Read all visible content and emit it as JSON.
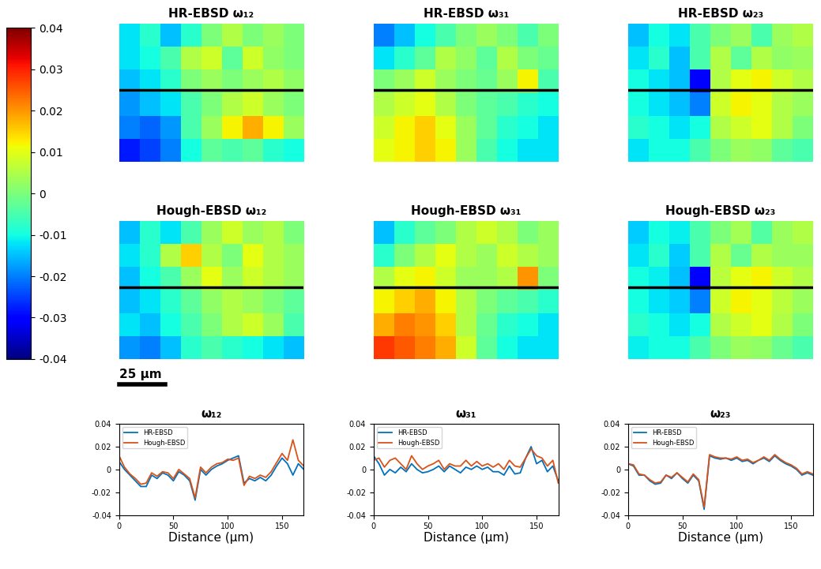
{
  "chart_data": [
    {
      "type": "colorbar",
      "range": [
        -0.04,
        0.04
      ],
      "ticks": [
        -0.04,
        -0.03,
        -0.02,
        -0.01,
        0,
        0.01,
        0.02,
        0.03,
        0.04
      ]
    },
    {
      "type": "heatmap",
      "title": "HR-EBSD ω₁₂",
      "tick_labels": false,
      "cells": [
        [
          -0.012,
          -0.008,
          -0.015,
          -0.008,
          0.0,
          0.005,
          0.0,
          0.003,
          0.0
        ],
        [
          -0.012,
          -0.01,
          -0.005,
          0.005,
          0.008,
          -0.003,
          0.008,
          0.002,
          0.0
        ],
        [
          -0.015,
          -0.012,
          -0.008,
          0.0,
          0.003,
          0.0,
          0.003,
          0.005,
          0.002
        ],
        [
          -0.018,
          -0.015,
          -0.012,
          -0.005,
          0.0,
          0.005,
          0.008,
          0.003,
          0.0
        ],
        [
          -0.02,
          -0.022,
          -0.018,
          -0.005,
          0.003,
          0.012,
          0.018,
          0.012,
          0.003
        ],
        [
          -0.028,
          -0.025,
          -0.02,
          -0.01,
          -0.003,
          -0.005,
          -0.003,
          -0.008,
          -0.01
        ]
      ]
    },
    {
      "type": "heatmap",
      "title": "HR-EBSD ω₃₁",
      "tick_labels": false,
      "cells": [
        [
          -0.02,
          -0.015,
          -0.01,
          -0.005,
          0.0,
          0.003,
          0.0,
          -0.005,
          0.0
        ],
        [
          -0.012,
          -0.008,
          -0.003,
          0.005,
          0.002,
          -0.003,
          0.005,
          0.0,
          -0.002
        ],
        [
          0.0,
          0.003,
          0.008,
          0.003,
          0.0,
          -0.002,
          0.003,
          0.012,
          -0.005
        ],
        [
          0.005,
          0.008,
          0.01,
          0.005,
          0.0,
          -0.003,
          -0.005,
          -0.008,
          -0.01
        ],
        [
          0.008,
          0.012,
          0.015,
          0.01,
          0.003,
          -0.003,
          -0.008,
          -0.01,
          -0.012
        ],
        [
          0.01,
          0.012,
          0.015,
          0.012,
          0.003,
          -0.005,
          -0.01,
          -0.012,
          -0.012
        ]
      ]
    },
    {
      "type": "heatmap",
      "title": "HR-EBSD ω₂₃",
      "tick_labels": false,
      "cells": [
        [
          -0.015,
          -0.01,
          -0.012,
          -0.005,
          0.0,
          0.003,
          -0.005,
          0.003,
          0.005
        ],
        [
          -0.012,
          -0.008,
          -0.015,
          -0.005,
          0.005,
          -0.003,
          0.005,
          0.002,
          0.003
        ],
        [
          -0.01,
          -0.012,
          -0.015,
          -0.03,
          0.005,
          0.01,
          0.012,
          0.008,
          0.005
        ],
        [
          -0.01,
          -0.012,
          -0.015,
          -0.02,
          0.008,
          0.012,
          0.01,
          0.005,
          0.003
        ],
        [
          -0.008,
          -0.01,
          -0.012,
          -0.01,
          0.005,
          0.008,
          0.01,
          0.005,
          0.0
        ],
        [
          -0.012,
          -0.01,
          -0.01,
          -0.005,
          0.0,
          0.003,
          0.002,
          -0.003,
          -0.005
        ]
      ]
    },
    {
      "type": "heatmap",
      "title": "Hough-EBSD ω₁₂",
      "tick_labels": false,
      "annotations": [
        "25 μm"
      ],
      "cells": [
        [
          -0.015,
          -0.008,
          -0.012,
          -0.005,
          0.003,
          0.008,
          0.003,
          0.005,
          0.0
        ],
        [
          -0.012,
          -0.008,
          0.005,
          0.015,
          0.005,
          0.0,
          0.01,
          0.005,
          0.003
        ],
        [
          -0.015,
          -0.01,
          -0.005,
          0.003,
          0.01,
          0.003,
          0.008,
          0.005,
          0.003
        ],
        [
          -0.015,
          -0.012,
          -0.008,
          -0.003,
          0.002,
          0.005,
          0.003,
          0.0,
          -0.003
        ],
        [
          -0.012,
          -0.015,
          -0.01,
          -0.005,
          0.0,
          0.005,
          0.008,
          0.003,
          -0.005
        ],
        [
          -0.018,
          -0.02,
          -0.015,
          -0.008,
          -0.005,
          -0.008,
          -0.01,
          -0.012,
          -0.015
        ]
      ]
    },
    {
      "type": "heatmap",
      "title": "Hough-EBSD ω₃₁",
      "tick_labels": false,
      "cells": [
        [
          -0.015,
          -0.008,
          -0.003,
          0.0,
          0.005,
          0.008,
          0.005,
          0.0,
          0.003
        ],
        [
          -0.008,
          0.0,
          0.005,
          0.01,
          0.005,
          0.003,
          0.008,
          0.005,
          0.003
        ],
        [
          0.005,
          0.01,
          0.012,
          0.008,
          0.003,
          0.003,
          0.005,
          0.02,
          0.0
        ],
        [
          0.012,
          0.015,
          0.018,
          0.012,
          0.005,
          0.0,
          -0.003,
          -0.005,
          -0.008
        ],
        [
          0.018,
          0.022,
          0.02,
          0.015,
          0.005,
          -0.002,
          -0.008,
          -0.01,
          -0.012
        ],
        [
          0.028,
          0.025,
          0.022,
          0.018,
          0.008,
          -0.003,
          -0.01,
          -0.012,
          -0.012
        ]
      ]
    },
    {
      "type": "heatmap",
      "title": "Hough-EBSD ω₂₃",
      "tick_labels": false,
      "cells": [
        [
          -0.014,
          -0.01,
          -0.011,
          -0.005,
          0.0,
          0.004,
          -0.004,
          0.003,
          0.005
        ],
        [
          -0.012,
          -0.008,
          -0.014,
          -0.005,
          0.005,
          -0.002,
          0.005,
          0.003,
          0.003
        ],
        [
          -0.01,
          -0.011,
          -0.015,
          -0.03,
          0.006,
          0.01,
          0.012,
          0.008,
          0.005
        ],
        [
          -0.01,
          -0.012,
          -0.014,
          -0.02,
          0.008,
          0.012,
          0.01,
          0.006,
          0.003
        ],
        [
          -0.008,
          -0.01,
          -0.012,
          -0.01,
          0.005,
          0.008,
          0.01,
          0.005,
          0.0
        ],
        [
          -0.011,
          -0.01,
          -0.01,
          -0.005,
          0.0,
          0.003,
          0.002,
          -0.002,
          -0.005
        ]
      ]
    },
    {
      "type": "line",
      "title": "ω₁₂",
      "xlabel": "Distance (μm)",
      "xlim": [
        0,
        170
      ],
      "xticks": [
        0,
        50,
        100,
        150
      ],
      "ylim": [
        -0.04,
        0.04
      ],
      "yticks": [
        -0.04,
        -0.02,
        0,
        0.02,
        0.04
      ],
      "legend": "upper left",
      "x": [
        0,
        5,
        10,
        15,
        20,
        25,
        30,
        35,
        40,
        45,
        50,
        55,
        60,
        65,
        70,
        75,
        80,
        85,
        90,
        95,
        100,
        105,
        110,
        115,
        120,
        125,
        130,
        135,
        140,
        145,
        150,
        155,
        160,
        165,
        170
      ],
      "series": [
        {
          "name": "HR-EBSD",
          "color": "#0072bd",
          "values": [
            0.007,
            0.0,
            -0.005,
            -0.01,
            -0.015,
            -0.015,
            -0.005,
            -0.008,
            -0.003,
            -0.005,
            -0.01,
            -0.002,
            -0.005,
            -0.01,
            -0.027,
            0.0,
            -0.005,
            0.0,
            0.003,
            0.005,
            0.008,
            0.01,
            0.012,
            -0.012,
            -0.008,
            -0.01,
            -0.007,
            -0.01,
            -0.005,
            0.003,
            0.01,
            0.005,
            -0.005,
            0.005,
            0.0
          ]
        },
        {
          "name": "Hough-EBSD",
          "color": "#d95319",
          "values": [
            0.012,
            0.002,
            -0.004,
            -0.008,
            -0.013,
            -0.012,
            -0.003,
            -0.006,
            -0.002,
            -0.003,
            -0.008,
            0.0,
            -0.004,
            -0.008,
            -0.025,
            0.002,
            -0.003,
            0.002,
            0.005,
            0.006,
            0.009,
            0.008,
            0.01,
            -0.014,
            -0.006,
            -0.008,
            -0.005,
            -0.007,
            -0.002,
            0.006,
            0.014,
            0.008,
            0.026,
            0.008,
            0.003
          ]
        }
      ]
    },
    {
      "type": "line",
      "title": "ω₃₁",
      "xlabel": "Distance (μm)",
      "xlim": [
        0,
        170
      ],
      "xticks": [
        0,
        50,
        100,
        150
      ],
      "ylim": [
        -0.04,
        0.04
      ],
      "yticks": [
        -0.04,
        -0.02,
        0,
        0.02,
        0.04
      ],
      "legend": "upper left",
      "x": [
        0,
        5,
        10,
        15,
        20,
        25,
        30,
        35,
        40,
        45,
        50,
        55,
        60,
        65,
        70,
        75,
        80,
        85,
        90,
        95,
        100,
        105,
        110,
        115,
        120,
        125,
        130,
        135,
        140,
        145,
        150,
        155,
        160,
        165,
        170
      ],
      "series": [
        {
          "name": "HR-EBSD",
          "color": "#0072bd",
          "values": [
            0.012,
            0.005,
            -0.005,
            0.0,
            -0.003,
            0.002,
            -0.002,
            0.005,
            0.0,
            -0.003,
            -0.002,
            0.0,
            0.003,
            -0.002,
            0.003,
            0.0,
            -0.003,
            0.002,
            0.0,
            0.003,
            0.0,
            0.002,
            -0.002,
            -0.002,
            -0.005,
            0.003,
            -0.004,
            -0.003,
            0.01,
            0.02,
            0.005,
            0.008,
            -0.002,
            0.003,
            -0.01
          ]
        },
        {
          "name": "Hough-EBSD",
          "color": "#d95319",
          "values": [
            0.008,
            0.01,
            0.002,
            0.008,
            0.01,
            0.005,
            0.0,
            0.012,
            0.005,
            0.0,
            0.003,
            0.005,
            0.008,
            0.0,
            0.005,
            0.003,
            0.003,
            0.008,
            0.003,
            0.007,
            0.003,
            0.005,
            0.002,
            0.005,
            0.0,
            0.008,
            0.003,
            0.002,
            0.01,
            0.018,
            0.012,
            0.01,
            0.003,
            0.008,
            -0.012
          ]
        }
      ]
    },
    {
      "type": "line",
      "title": "ω₂₃",
      "xlabel": "Distance (μm)",
      "xlim": [
        0,
        170
      ],
      "xticks": [
        0,
        50,
        100,
        150
      ],
      "ylim": [
        -0.04,
        0.04
      ],
      "yticks": [
        -0.04,
        -0.02,
        0,
        0.02,
        0.04
      ],
      "legend": "upper left",
      "x": [
        0,
        5,
        10,
        15,
        20,
        25,
        30,
        35,
        40,
        45,
        50,
        55,
        60,
        65,
        70,
        75,
        80,
        85,
        90,
        95,
        100,
        105,
        110,
        115,
        120,
        125,
        130,
        135,
        140,
        145,
        150,
        155,
        160,
        165,
        170
      ],
      "series": [
        {
          "name": "HR-EBSD",
          "color": "#0072bd",
          "values": [
            0.005,
            0.003,
            -0.005,
            -0.005,
            -0.01,
            -0.013,
            -0.012,
            -0.005,
            -0.008,
            -0.003,
            -0.008,
            -0.012,
            -0.005,
            -0.01,
            -0.035,
            0.012,
            0.01,
            0.009,
            0.01,
            0.008,
            0.01,
            0.007,
            0.008,
            0.005,
            0.008,
            0.01,
            0.007,
            0.012,
            0.008,
            0.005,
            0.003,
            0.0,
            -0.005,
            -0.003,
            -0.005
          ]
        },
        {
          "name": "Hough-EBSD",
          "color": "#d95319",
          "values": [
            0.005,
            0.004,
            -0.004,
            -0.005,
            -0.009,
            -0.012,
            -0.011,
            -0.005,
            -0.007,
            -0.003,
            -0.007,
            -0.011,
            -0.004,
            -0.009,
            -0.033,
            0.013,
            0.011,
            0.01,
            0.01,
            0.009,
            0.011,
            0.008,
            0.009,
            0.006,
            0.008,
            0.011,
            0.008,
            0.013,
            0.009,
            0.006,
            0.004,
            0.001,
            -0.004,
            -0.002,
            -0.004
          ]
        }
      ]
    }
  ]
}
